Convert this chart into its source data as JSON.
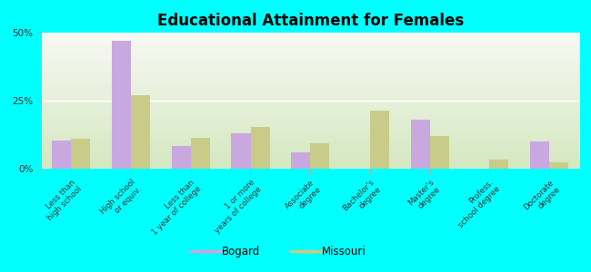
{
  "title": "Educational Attainment for Females",
  "categories": [
    "Less than\nhigh school",
    "High school\nor equiv.",
    "Less than\n1 year of college",
    "1 or more\nyears of college",
    "Associate\ndegree",
    "Bachelor's\ndegree",
    "Master's\ndegree",
    "Profess.\nschool degree",
    "Doctorate\ndegree"
  ],
  "bogard": [
    10.5,
    47.0,
    8.5,
    13.0,
    6.0,
    0.0,
    18.0,
    0.0,
    10.0
  ],
  "missouri": [
    11.0,
    27.0,
    11.5,
    15.5,
    9.5,
    21.5,
    12.0,
    3.5,
    2.5
  ],
  "bogard_color": "#c9a8e0",
  "missouri_color": "#c8cc88",
  "bg_color": "#00ffff",
  "plot_bg_top": "#f8f8f4",
  "plot_bg_bottom": "#d4e8c0",
  "ylim": [
    0,
    50
  ],
  "yticks": [
    0,
    25,
    50
  ],
  "ytick_labels": [
    "0%",
    "25%",
    "50%"
  ],
  "bar_width": 0.32,
  "legend_bogard": "Bogard",
  "legend_missouri": "Missouri"
}
